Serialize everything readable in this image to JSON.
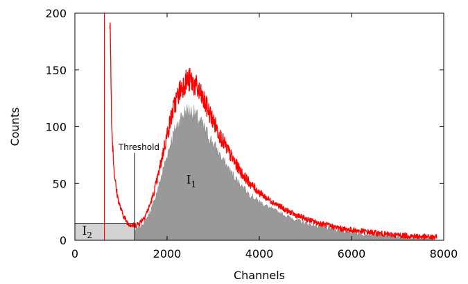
{
  "chart_data": {
    "type": "area",
    "title": "",
    "xlabel": "Channels",
    "ylabel": "Counts",
    "xlim": [
      0,
      8000
    ],
    "ylim": [
      0,
      200
    ],
    "xticks": [
      0,
      2000,
      4000,
      6000,
      8000
    ],
    "yticks": [
      0,
      50,
      100,
      150,
      200
    ],
    "grid": false,
    "threshold": {
      "label": "Threshold",
      "x": 1300
    },
    "regions": [
      {
        "label": "I",
        "subscript": "1",
        "fill": "#999999",
        "x_from": 1300,
        "x_to": 7800
      },
      {
        "label": "I",
        "subscript": "2",
        "fill": "#d3d3d3",
        "x_from": 0,
        "x_to": 1300
      }
    ],
    "colors": {
      "measured": "#ff0000",
      "integrated": "#999999",
      "below_threshold": "#d3d3d3"
    },
    "series": [
      {
        "x": [
          640,
          700,
          760,
          800,
          850,
          900,
          950,
          1000,
          1050,
          1100,
          1150,
          1200,
          1250,
          1300,
          1400,
          1500,
          1600,
          1700,
          1800,
          1900,
          2000,
          2100,
          2200,
          2300,
          2400,
          2500,
          2600,
          2700,
          2800,
          2900,
          3000,
          3200,
          3400,
          3600,
          3800,
          4000,
          4200,
          4400,
          4600,
          4800,
          5000,
          5200,
          5400,
          5600,
          5800,
          6000,
          6200,
          6400,
          6600,
          6800,
          7000,
          7200,
          7400,
          7600,
          7850
        ],
        "values": [
          200,
          200,
          200,
          100,
          62,
          44,
          34,
          27,
          22,
          18,
          15,
          14,
          13,
          13,
          15,
          20,
          28,
          40,
          56,
          75,
          93,
          110,
          124,
          134,
          140,
          141,
          137,
          130,
          122,
          114,
          105,
          88,
          73,
          60,
          50,
          42,
          36,
          31,
          26,
          22,
          19,
          16,
          14,
          12,
          10,
          9,
          8,
          7,
          6,
          5,
          4.5,
          4,
          3.5,
          3,
          2.5
        ]
      },
      {
        "x": [
          1300,
          1400,
          1500,
          1600,
          1700,
          1800,
          1900,
          2000,
          2100,
          2200,
          2300,
          2400,
          2500,
          2600,
          2700,
          2800,
          2900,
          3000,
          3200,
          3400,
          3600,
          3800,
          4000,
          4200,
          4400,
          4600,
          4800,
          5000,
          5200,
          5400,
          5600,
          5800,
          6000,
          6200,
          6400,
          6600,
          6800,
          7000,
          7200,
          7400,
          7600,
          7800
        ],
        "values": [
          9,
          11,
          16,
          22,
          32,
          45,
          60,
          75,
          89,
          100,
          108,
          113,
          114,
          111,
          105,
          99,
          92,
          85,
          71,
          59,
          49,
          40,
          34,
          29,
          25,
          21,
          18,
          15,
          13,
          11,
          10,
          8,
          7,
          6,
          5,
          4.5,
          4,
          3.5,
          3,
          2.5,
          2,
          1.5
        ]
      }
    ]
  }
}
